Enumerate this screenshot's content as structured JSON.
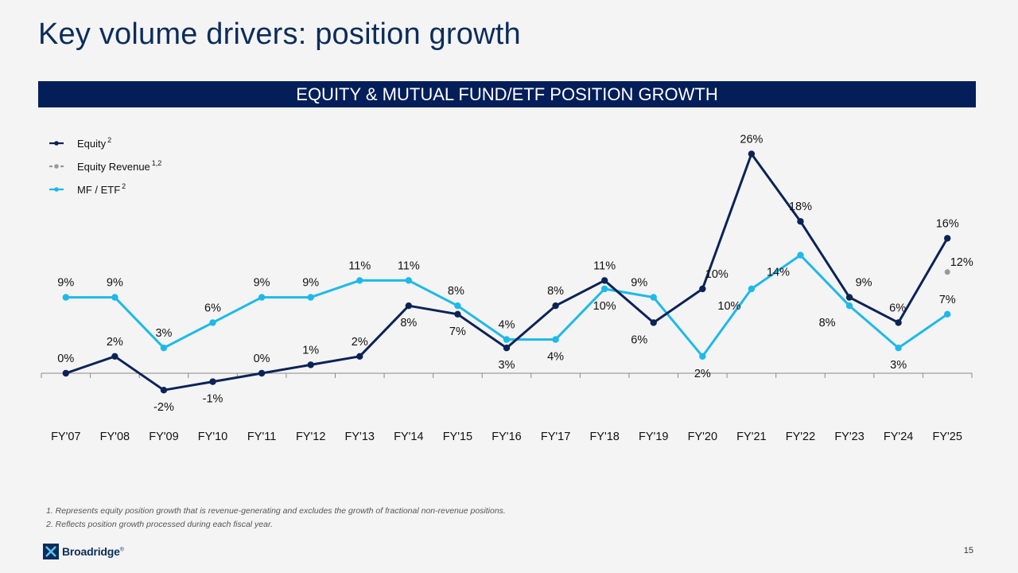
{
  "title": "Key volume drivers: position growth",
  "banner": "EQUITY & MUTUAL FUND/ETF POSITION GROWTH",
  "footnotes": [
    "1. Represents equity position growth that is revenue-generating and excludes the growth of fractional non-revenue positions.",
    "2. Reflects position growth processed during each fiscal year."
  ],
  "logo": {
    "text": "Broadridge",
    "mark": "®"
  },
  "page_number": "15",
  "colors": {
    "equity": "#0b2356",
    "equity_revenue": "#999999",
    "mf_etf": "#1eb9e9"
  },
  "chart_data": {
    "type": "line",
    "categories": [
      "FY'07",
      "FY'08",
      "FY'09",
      "FY'10",
      "FY'11",
      "FY'12",
      "FY'13",
      "FY'14",
      "FY'15",
      "FY'16",
      "FY'17",
      "FY'18",
      "FY'19",
      "FY'20",
      "FY'21",
      "FY'22",
      "FY'23",
      "FY'24",
      "FY'25"
    ],
    "ylim": [
      -4,
      28
    ],
    "series": [
      {
        "name": "Equity",
        "superscript": "2",
        "values": [
          0,
          2,
          -2,
          -1,
          0,
          1,
          2,
          8,
          7,
          3,
          8,
          11,
          6,
          10,
          26,
          18,
          9,
          6,
          16
        ],
        "labels": [
          "0%",
          "2%",
          "-2%",
          "-1%",
          "0%",
          "1%",
          "2%",
          "8%",
          "7%",
          "3%",
          "8%",
          "11%",
          "6%",
          "10%",
          "26%",
          "18%",
          "9%",
          "6%",
          "16%"
        ]
      },
      {
        "name": "Equity Revenue",
        "superscript": "1,2",
        "values": [
          null,
          null,
          null,
          null,
          null,
          null,
          null,
          null,
          null,
          null,
          null,
          null,
          null,
          null,
          null,
          null,
          null,
          null,
          12
        ],
        "labels": [
          "",
          "",
          "",
          "",
          "",
          "",
          "",
          "",
          "",
          "",
          "",
          "",
          "",
          "",
          "",
          "",
          "",
          "",
          "12%"
        ]
      },
      {
        "name": "MF / ETF",
        "superscript": "2",
        "values": [
          9,
          9,
          3,
          6,
          9,
          9,
          11,
          11,
          8,
          4,
          4,
          10,
          9,
          2,
          10,
          14,
          8,
          3,
          7
        ],
        "labels": [
          "9%",
          "9%",
          "3%",
          "6%",
          "9%",
          "9%",
          "11%",
          "11%",
          "8%",
          "4%",
          "4%",
          "10%",
          "9%",
          "2%",
          "10%",
          "14%",
          "8%",
          "3%",
          "7%"
        ]
      }
    ]
  }
}
